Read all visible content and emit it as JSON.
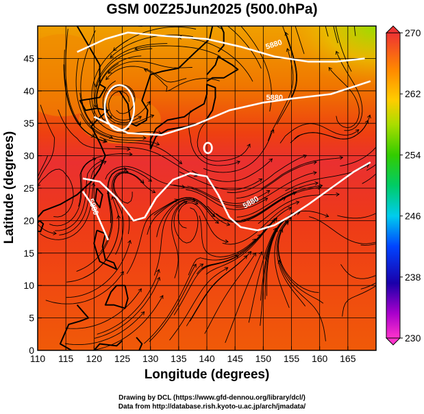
{
  "title": "GSM 00Z25Jun2025 (500.0hPa)",
  "xlabel": "Longitude (degrees)",
  "ylabel": "Latitude  (degrees)",
  "credit_line1": "Drawing by DCL (https://www.gfd-dennou.org/library/dcl/)",
  "credit_line2": "Data from http://database.rish.kyoto-u.ac.jp/arch/jmadata/",
  "chart_data": {
    "type": "heatmap",
    "variable": "temperature with streamlines",
    "level": "500.0hPa",
    "x_ticks": [
      110,
      115,
      120,
      125,
      130,
      135,
      140,
      145,
      150,
      155,
      160,
      165
    ],
    "y_ticks": [
      0,
      5,
      10,
      15,
      20,
      25,
      30,
      35,
      40,
      45
    ],
    "xlim": [
      110,
      170
    ],
    "ylim": [
      0,
      50
    ],
    "grid": true,
    "colorbar": {
      "ticks": [
        230,
        238,
        246,
        254,
        262,
        270
      ],
      "range": [
        230,
        270
      ],
      "colors": [
        "#ff33cc",
        "#9900cc",
        "#0000aa",
        "#0066ff",
        "#00ccee",
        "#00cc66",
        "#33cc00",
        "#99dd00",
        "#ffcc00",
        "#ff8800",
        "#ff3300",
        "#ee3333"
      ]
    },
    "contours": [
      {
        "label": "5880",
        "points": [
          [
            117,
            46
          ],
          [
            122,
            48
          ],
          [
            126,
            49
          ],
          [
            132,
            48.5
          ],
          [
            140,
            48
          ],
          [
            146,
            46.8
          ],
          [
            152,
            45.3
          ],
          [
            158,
            44.5
          ],
          [
            163,
            44.5
          ],
          [
            168,
            45
          ]
        ]
      },
      {
        "label": "5880",
        "points": [
          [
            120,
            36
          ],
          [
            126,
            33.5
          ],
          [
            132,
            33.2
          ],
          [
            138,
            34.8
          ],
          [
            144,
            37
          ],
          [
            150,
            38.2
          ],
          [
            155,
            38.8
          ],
          [
            162,
            39.5
          ],
          [
            169,
            41.5
          ]
        ]
      },
      {
        "label": "5880",
        "points": [
          [
            118,
            26.5
          ],
          [
            121,
            26
          ],
          [
            124,
            23.5
          ],
          [
            127,
            20
          ],
          [
            129,
            20.5
          ],
          [
            131,
            23.5
          ],
          [
            134,
            26.3
          ],
          [
            137,
            27.3
          ],
          [
            140,
            26.8
          ],
          [
            142,
            24
          ],
          [
            144,
            20.5
          ],
          [
            146,
            19
          ],
          [
            149,
            18.5
          ],
          [
            152,
            19.3
          ],
          [
            155,
            20.8
          ],
          [
            158,
            22.5
          ],
          [
            162,
            25
          ],
          [
            166,
            27.5
          ],
          [
            169,
            29
          ]
        ]
      },
      {
        "label": "5880",
        "points": [
          [
            118,
            24.5
          ],
          [
            120,
            22
          ],
          [
            121.5,
            19
          ],
          [
            122.5,
            17
          ]
        ]
      }
    ],
    "closed_contours": [
      {
        "center": [
          124.5,
          37.4
        ],
        "rx": 2.6,
        "ry": 3.5
      },
      {
        "center": [
          140.2,
          31.2
        ],
        "rx": 0.7,
        "ry": 0.8
      }
    ]
  }
}
